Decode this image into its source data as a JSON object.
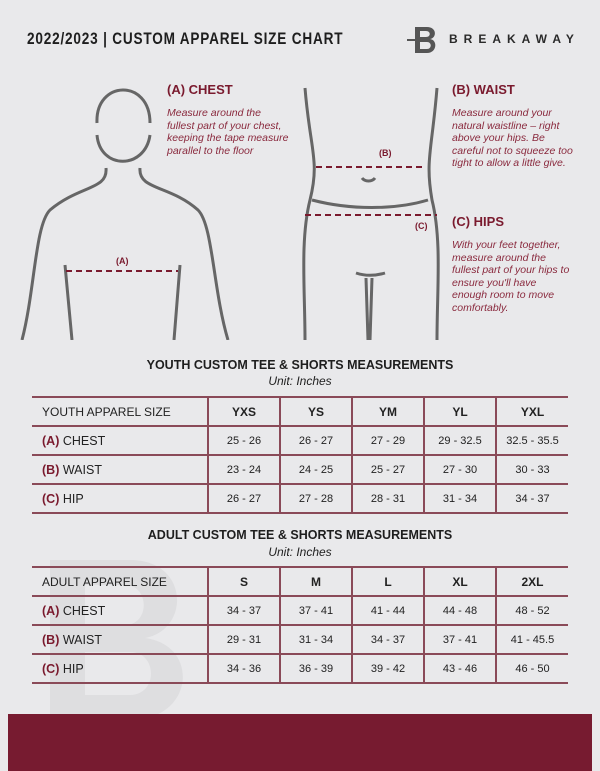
{
  "header": {
    "title": "2022/2023  |  CUSTOM APPAREL SIZE CHART",
    "brand": "BREAKAWAY",
    "logo_letter": "B"
  },
  "chest": {
    "heading": "(A) CHEST",
    "text": "Measure around the fullest part of your chest, keeping the tape measure parallel to the floor",
    "marker": "(A)"
  },
  "waist": {
    "heading": "(B) WAIST",
    "text": "Measure around your natural waistline – right above your hips. Be careful not to squeeze too tight to allow a little give.",
    "marker": "(B)"
  },
  "hips": {
    "heading": "(C) HIPS",
    "text": "With your feet together, measure around the fullest part of your hips to ensure you'll have enough room to move comfortably.",
    "marker": "(C)"
  },
  "colors": {
    "accent": "#771b30",
    "background": "#e9e9eb"
  },
  "youth": {
    "title": "YOUTH CUSTOM TEE & SHORTS MEASUREMENTS",
    "unit": "Unit: Inches",
    "header": "YOUTH APPAREL SIZE",
    "sizes": [
      "YXS",
      "YS",
      "YM",
      "YL",
      "YXL"
    ],
    "rows": [
      {
        "code": "(A)",
        "name": "CHEST",
        "values": [
          "25 - 26",
          "26 - 27",
          "27 - 29",
          "29 - 32.5",
          "32.5 - 35.5"
        ]
      },
      {
        "code": "(B)",
        "name": "WAIST",
        "values": [
          "23 - 24",
          "24 - 25",
          "25 - 27",
          "27 - 30",
          "30 - 33"
        ]
      },
      {
        "code": "(C)",
        "name": "HIP",
        "values": [
          "26 - 27",
          "27 - 28",
          "28 - 31",
          "31 - 34",
          "34 - 37"
        ]
      }
    ]
  },
  "adult": {
    "title": "ADULT CUSTOM TEE & SHORTS MEASUREMENTS",
    "unit": "Unit: Inches",
    "header": "ADULT APPAREL SIZE",
    "sizes": [
      "S",
      "M",
      "L",
      "XL",
      "2XL"
    ],
    "rows": [
      {
        "code": "(A)",
        "name": "CHEST",
        "values": [
          "34 - 37",
          "37 - 41",
          "41 - 44",
          "44 - 48",
          "48 - 52"
        ]
      },
      {
        "code": "(B)",
        "name": "WAIST",
        "values": [
          "29 - 31",
          "31 - 34",
          "34 - 37",
          "37 - 41",
          "41 - 45.5"
        ]
      },
      {
        "code": "(C)",
        "name": "HIP",
        "values": [
          "34 - 36",
          "36 - 39",
          "39 - 42",
          "43 - 46",
          "46 - 50"
        ]
      }
    ]
  }
}
